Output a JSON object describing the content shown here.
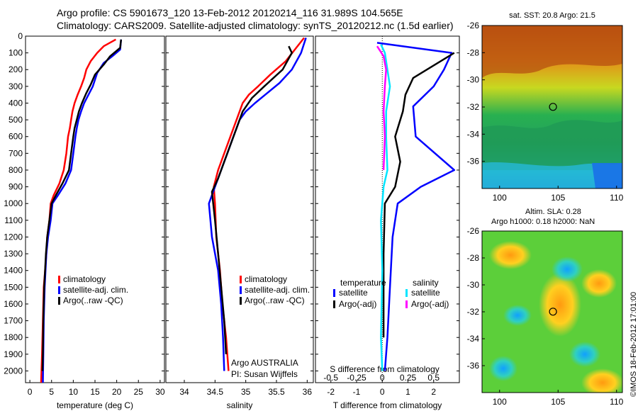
{
  "header": {
    "line1": "Argo profile: CS 5901673_120 13-Feb-2012 20120214_116 31.989S 104.565E",
    "line2": "Climatology: CARS2009. Satellite-adjusted climatology: synTS_20120212.nc (1.5d earlier)"
  },
  "colors": {
    "climatology": "#ff0000",
    "satellite": "#0000ff",
    "argo": "#000000",
    "sat_salinity": "#00e5ff",
    "argo_salinity": "#ff00ff"
  },
  "stamp": "©IMOS 18-Feb-2012 17:01:00",
  "chart_data": [
    {
      "type": "line",
      "panel": "temperature",
      "xlabel": "temperature (deg C)",
      "xlim": [
        -1,
        31
      ],
      "ylim": [
        2070,
        0
      ],
      "xticks": [
        "0",
        "5",
        "10",
        "15",
        "20",
        "25",
        "30"
      ],
      "yticks": [
        "0",
        "100",
        "200",
        "300",
        "400",
        "500",
        "600",
        "700",
        "800",
        "900",
        "1000",
        "1100",
        "1200",
        "1300",
        "1400",
        "1500",
        "1600",
        "1700",
        "1800",
        "1900",
        "2000"
      ],
      "legend": [
        "climatology",
        "satellite-adj. clim.",
        "Argo(..raw -QC)"
      ],
      "series": [
        {
          "name": "climatology",
          "color": "#ff0000",
          "points": [
            [
              19.8,
              20
            ],
            [
              17,
              60
            ],
            [
              15.5,
              100
            ],
            [
              14,
              150
            ],
            [
              13,
              200
            ],
            [
              12.5,
              250
            ],
            [
              11.8,
              300
            ],
            [
              11,
              350
            ],
            [
              10.3,
              400
            ],
            [
              9.8,
              450
            ],
            [
              9.5,
              500
            ],
            [
              9.2,
              550
            ],
            [
              8.8,
              600
            ],
            [
              8.4,
              700
            ],
            [
              7.8,
              800
            ],
            [
              6.8,
              880
            ],
            [
              5.5,
              950
            ],
            [
              4.8,
              1000
            ],
            [
              4.5,
              1100
            ],
            [
              4.0,
              1200
            ],
            [
              3.8,
              1300
            ],
            [
              3.5,
              1400
            ],
            [
              3.2,
              1500
            ],
            [
              3.0,
              1700
            ],
            [
              2.8,
              1900
            ],
            [
              2.6,
              2070
            ]
          ]
        },
        {
          "name": "satellite-adj. clim.",
          "color": "#0000ff",
          "points": [
            [
              21.0,
              20
            ],
            [
              20.8,
              80
            ],
            [
              19,
              120
            ],
            [
              17,
              160
            ],
            [
              15.5,
              220
            ],
            [
              14.5,
              300
            ],
            [
              13.5,
              350
            ],
            [
              12.5,
              400
            ],
            [
              11.8,
              450
            ],
            [
              11.2,
              500
            ],
            [
              10.8,
              550
            ],
            [
              10.5,
              600
            ],
            [
              10,
              700
            ],
            [
              9.5,
              800
            ],
            [
              8.2,
              880
            ],
            [
              6.5,
              950
            ],
            [
              5.2,
              1000
            ],
            [
              4.8,
              1100
            ],
            [
              4.2,
              1200
            ],
            [
              3.8,
              1300
            ],
            [
              3.6,
              1400
            ],
            [
              3.4,
              1500
            ],
            [
              3.2,
              1700
            ],
            [
              3.1,
              1900
            ],
            [
              3.0,
              2070
            ]
          ]
        },
        {
          "name": "Argo(..raw -QC)",
          "color": "#000000",
          "points": [
            [
              21.0,
              20
            ],
            [
              20.8,
              70
            ],
            [
              18.5,
              120
            ],
            [
              17,
              170
            ],
            [
              15,
              230
            ],
            [
              14,
              290
            ],
            [
              13,
              340
            ],
            [
              12,
              400
            ],
            [
              11.3,
              450
            ],
            [
              10.8,
              500
            ],
            [
              10.3,
              550
            ],
            [
              10,
              600
            ],
            [
              9.5,
              700
            ],
            [
              9,
              800
            ],
            [
              7.5,
              880
            ],
            [
              6,
              950
            ],
            [
              5,
              1000
            ],
            [
              4.5,
              1100
            ],
            [
              4,
              1200
            ],
            [
              3.7,
              1300
            ],
            [
              3.5,
              1400
            ],
            [
              3.3,
              1500
            ],
            [
              3.1,
              1700
            ],
            [
              3,
              1900
            ],
            [
              2.9,
              2000
            ]
          ]
        }
      ]
    },
    {
      "type": "line",
      "panel": "salinity",
      "xlabel": "salinity",
      "xlim": [
        33.7,
        36.1
      ],
      "ylim": [
        2070,
        0
      ],
      "xticks": [
        "34",
        "34.5",
        "35",
        "35.5",
        "36"
      ],
      "legend": [
        "climatology",
        "satellite-adj. clim.",
        "Argo(..raw -QC)"
      ],
      "annotation": [
        "Argo AUSTRALIA",
        "PI: Susan Wijffels"
      ],
      "series": [
        {
          "name": "climatology",
          "color": "#ff0000",
          "points": [
            [
              35.95,
              10
            ],
            [
              35.8,
              80
            ],
            [
              35.65,
              150
            ],
            [
              35.4,
              230
            ],
            [
              35.2,
              300
            ],
            [
              35.05,
              350
            ],
            [
              34.95,
              400
            ],
            [
              34.85,
              500
            ],
            [
              34.75,
              600
            ],
            [
              34.65,
              700
            ],
            [
              34.55,
              800
            ],
            [
              34.48,
              900
            ],
            [
              34.5,
              1000
            ],
            [
              34.52,
              1200
            ],
            [
              34.58,
              1400
            ],
            [
              34.62,
              1600
            ],
            [
              34.68,
              1800
            ],
            [
              34.72,
              2000
            ]
          ]
        },
        {
          "name": "satellite-adj. clim.",
          "color": "#0000ff",
          "points": [
            [
              35.98,
              10
            ],
            [
              35.9,
              100
            ],
            [
              35.75,
              200
            ],
            [
              35.55,
              280
            ],
            [
              35.35,
              340
            ],
            [
              35.15,
              400
            ],
            [
              35.0,
              450
            ],
            [
              34.9,
              500
            ],
            [
              34.8,
              600
            ],
            [
              34.7,
              700
            ],
            [
              34.6,
              800
            ],
            [
              34.5,
              900
            ],
            [
              34.4,
              1000
            ],
            [
              34.45,
              1200
            ],
            [
              34.55,
              1400
            ],
            [
              34.6,
              1600
            ],
            [
              34.63,
              1800
            ],
            [
              34.65,
              2000
            ]
          ]
        },
        {
          "name": "Argo(..raw -QC)",
          "color": "#000000",
          "points": [
            [
              35.7,
              60
            ],
            [
              35.75,
              100
            ],
            [
              35.6,
              200
            ],
            [
              35.3,
              300
            ],
            [
              35.1,
              370
            ],
            [
              34.95,
              450
            ],
            [
              34.85,
              550
            ],
            [
              34.75,
              650
            ],
            [
              34.65,
              750
            ],
            [
              34.55,
              850
            ],
            [
              34.45,
              930
            ],
            [
              34.5,
              1100
            ],
            [
              34.55,
              1300
            ],
            [
              34.6,
              1500
            ],
            [
              34.65,
              1700
            ],
            [
              34.68,
              1900
            ]
          ]
        }
      ]
    },
    {
      "type": "line",
      "panel": "difference",
      "xlabel": "T difference from climatology",
      "xlabel2": "S difference from climatology",
      "xlim": [
        -2.6,
        3.0
      ],
      "ylim": [
        2070,
        0
      ],
      "xticks": [
        "-2",
        "-1",
        "0",
        "1",
        "2"
      ],
      "xticks2": [
        "-0.5",
        "-0.25",
        "0",
        "0.25",
        "0.5"
      ],
      "legend_groups": [
        "temperature",
        "salinity"
      ],
      "legend": [
        "satellite",
        "Argo(-adj)",
        "satellite",
        "Argo(-adj)"
      ],
      "series": [
        {
          "name": "satellite",
          "group": "temperature",
          "color": "#0000ff",
          "points": [
            [
              -0.2,
              40
            ],
            [
              2.7,
              100
            ],
            [
              2.4,
              200
            ],
            [
              2,
              300
            ],
            [
              1.2,
              420
            ],
            [
              1.3,
              600
            ],
            [
              2.8,
              800
            ],
            [
              1.5,
              900
            ],
            [
              0.6,
              1000
            ],
            [
              0.4,
              1200
            ],
            [
              0.3,
              1500
            ],
            [
              0.2,
              1800
            ],
            [
              0.1,
              2000
            ]
          ]
        },
        {
          "name": "Argo(-adj)",
          "group": "temperature",
          "color": "#000000",
          "points": [
            [
              2.8,
              100
            ],
            [
              1.2,
              250
            ],
            [
              0.9,
              350
            ],
            [
              0.8,
              450
            ],
            [
              0.5,
              600
            ],
            [
              0.7,
              750
            ],
            [
              0.5,
              900
            ],
            [
              0.1,
              1000
            ],
            [
              0.05,
              1300
            ],
            [
              0.05,
              1600
            ],
            [
              0.05,
              1800
            ]
          ]
        },
        {
          "name": "satellite",
          "group": "salinity",
          "color": "#00e5ff",
          "points": [
            [
              -0.05,
              50
            ],
            [
              0.1,
              100
            ],
            [
              0.2,
              200
            ],
            [
              0.3,
              300
            ],
            [
              0.15,
              450
            ],
            [
              0.15,
              600
            ],
            [
              0.2,
              800
            ],
            [
              0.05,
              900
            ],
            [
              -0.05,
              1100
            ],
            [
              0,
              1400
            ],
            [
              -0.05,
              1800
            ],
            [
              0,
              2000
            ]
          ]
        },
        {
          "name": "Argo(-adj)",
          "group": "salinity",
          "color": "#ff00ff",
          "points": [
            [
              -0.2,
              60
            ],
            [
              0.05,
              120
            ],
            [
              0.15,
              200
            ],
            [
              0.1,
              300
            ],
            [
              0.05,
              450
            ],
            [
              0.1,
              600
            ],
            [
              0.05,
              800
            ]
          ]
        }
      ]
    },
    {
      "type": "heatmap",
      "panel": "sst_map",
      "title": "sat. SST: 20.8 Argo: 21.5",
      "xlim": [
        98.5,
        110.5
      ],
      "ylim": [
        -38,
        -26
      ],
      "xticks": [
        "100",
        "105",
        "110"
      ],
      "yticks": [
        "-26",
        "-28",
        "-30",
        "-32",
        "-34",
        "-36"
      ],
      "marker": {
        "lon": 104.565,
        "lat": -31.989
      }
    },
    {
      "type": "heatmap",
      "panel": "sla_map",
      "title": "Altim. SLA: 0.28",
      "subtitle": "Argo h1000: 0.18 h2000: NaN",
      "xlim": [
        98.5,
        110.5
      ],
      "ylim": [
        -38,
        -26
      ],
      "xticks": [
        "100",
        "105",
        "110"
      ],
      "yticks": [
        "-26",
        "-28",
        "-30",
        "-32",
        "-34",
        "-36"
      ],
      "marker": {
        "lon": 104.565,
        "lat": -31.989
      }
    }
  ]
}
